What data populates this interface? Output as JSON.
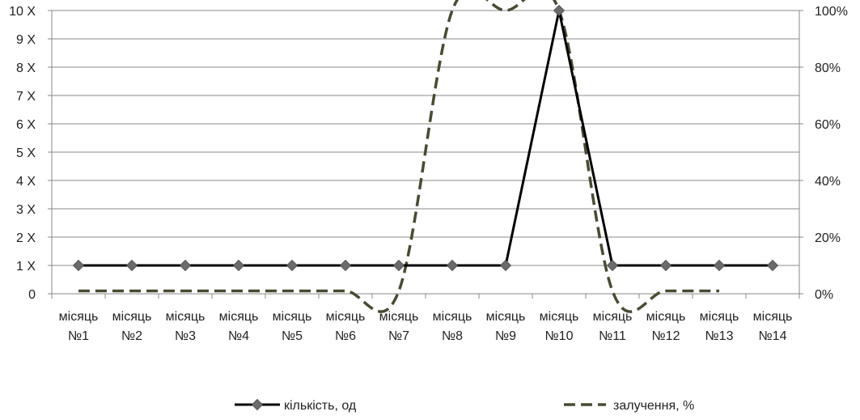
{
  "chart_data": {
    "type": "line",
    "categories": [
      [
        "місяць",
        "№1"
      ],
      [
        "місяць",
        "№2"
      ],
      [
        "місяць",
        "№3"
      ],
      [
        "місяць",
        "№4"
      ],
      [
        "місяць",
        "№5"
      ],
      [
        "місяць",
        "№6"
      ],
      [
        "місяць",
        "№7"
      ],
      [
        "місяць",
        "№8"
      ],
      [
        "місяць",
        "№9"
      ],
      [
        "місяць",
        "№10"
      ],
      [
        "місяць",
        "№11"
      ],
      [
        "місяць",
        "№12"
      ],
      [
        "місяць",
        "№13"
      ],
      [
        "місяць",
        "№14"
      ]
    ],
    "y_left": {
      "ticks": [
        "0",
        "1 Х",
        "2 Х",
        "3 Х",
        "4 Х",
        "5 Х",
        "6 Х",
        "7 Х",
        "8 Х",
        "9 Х",
        "10 Х"
      ],
      "range": [
        0,
        10
      ]
    },
    "y_right": {
      "ticks": [
        "0%",
        "20%",
        "40%",
        "60%",
        "80%",
        "100%"
      ],
      "range": [
        0,
        100
      ]
    },
    "series": [
      {
        "name": "кількість, од",
        "axis": "left",
        "marker": "diamond",
        "style": "solid",
        "color": "#000000",
        "marker_color": "#6b6b6b",
        "values": [
          1,
          1,
          1,
          1,
          1,
          1,
          1,
          1,
          1,
          10,
          1,
          1,
          1,
          1
        ]
      },
      {
        "name": "залучення, %",
        "axis": "right",
        "style": "dashed",
        "smooth": true,
        "color": "#4a4a32",
        "values": [
          1,
          1,
          1,
          1,
          1,
          1,
          1,
          100,
          100,
          100,
          1,
          1,
          1,
          null
        ]
      }
    ],
    "grid": "horizontal",
    "legend": "bottom"
  }
}
